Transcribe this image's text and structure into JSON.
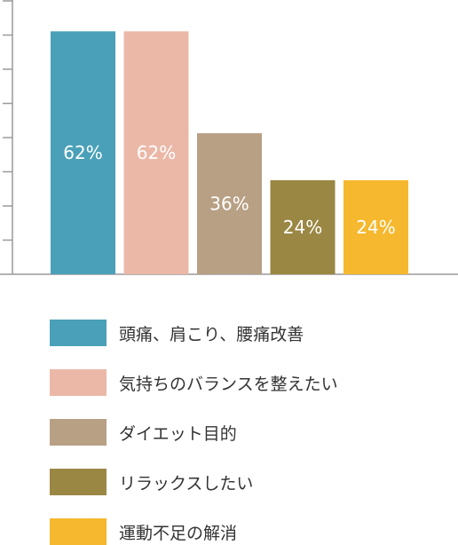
{
  "chart_data": {
    "type": "bar",
    "categories": [
      "頭痛、肩こり、腰痛改善",
      "気持ちのバランスを整えたい",
      "ダイエット目的",
      "リラックスしたい",
      "運動不足の解消"
    ],
    "values": [
      62,
      62,
      36,
      24,
      24
    ],
    "value_labels": [
      "62%",
      "62%",
      "36%",
      "24%",
      "24%"
    ],
    "colors": [
      "#4aa0b8",
      "#ebb8a8",
      "#b8a085",
      "#9a8743",
      "#f5b82e"
    ],
    "ylim": [
      0,
      70
    ],
    "grid": false,
    "legend_position": "bottom"
  }
}
